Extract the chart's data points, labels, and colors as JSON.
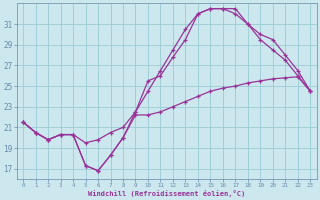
{
  "xlabel": "Windchill (Refroidissement éolien,°C)",
  "bg_color": "#cce8ee",
  "grid_color": "#99ccd4",
  "line_color": "#993399",
  "spine_color": "#6688aa",
  "xlim": [
    -0.5,
    23.5
  ],
  "ylim": [
    16.0,
    33.0
  ],
  "xticks": [
    0,
    1,
    2,
    3,
    4,
    5,
    6,
    7,
    8,
    9,
    10,
    11,
    12,
    13,
    14,
    15,
    16,
    17,
    18,
    19,
    20,
    21,
    22,
    23
  ],
  "yticks": [
    17,
    19,
    21,
    23,
    25,
    27,
    29,
    31
  ],
  "line_min_x": [
    0,
    1,
    2,
    3,
    4,
    5,
    6,
    7,
    8,
    9,
    10,
    11,
    12,
    13,
    14,
    15,
    16,
    17,
    18,
    19,
    20,
    21,
    22,
    23
  ],
  "line_min_y": [
    21.5,
    20.5,
    19.8,
    20.3,
    20.3,
    17.3,
    16.8,
    18.3,
    20.0,
    22.2,
    22.2,
    22.5,
    23.0,
    23.5,
    24.0,
    24.5,
    24.8,
    25.0,
    25.3,
    25.5,
    25.7,
    25.8,
    25.9,
    24.5
  ],
  "line_max_x": [
    0,
    1,
    2,
    3,
    4,
    5,
    6,
    7,
    8,
    9,
    10,
    11,
    12,
    13,
    14,
    15,
    16,
    17,
    18,
    19,
    20,
    21,
    22,
    23
  ],
  "line_max_y": [
    21.5,
    20.5,
    19.8,
    20.3,
    20.3,
    17.3,
    16.8,
    18.3,
    20.0,
    22.5,
    25.5,
    26.0,
    27.8,
    29.5,
    32.0,
    32.5,
    32.5,
    32.5,
    31.0,
    29.5,
    28.5,
    27.5,
    26.0,
    24.5
  ],
  "line_avg_x": [
    0,
    1,
    2,
    3,
    4,
    5,
    6,
    7,
    8,
    9,
    10,
    11,
    12,
    13,
    14,
    15,
    16,
    17,
    18,
    19,
    20,
    21,
    22,
    23
  ],
  "line_avg_y": [
    21.5,
    20.5,
    19.8,
    20.3,
    20.3,
    19.5,
    19.8,
    20.5,
    21.0,
    22.5,
    24.5,
    26.5,
    28.5,
    30.5,
    32.0,
    32.5,
    32.5,
    32.0,
    31.0,
    30.0,
    29.5,
    28.0,
    26.5,
    24.5
  ]
}
